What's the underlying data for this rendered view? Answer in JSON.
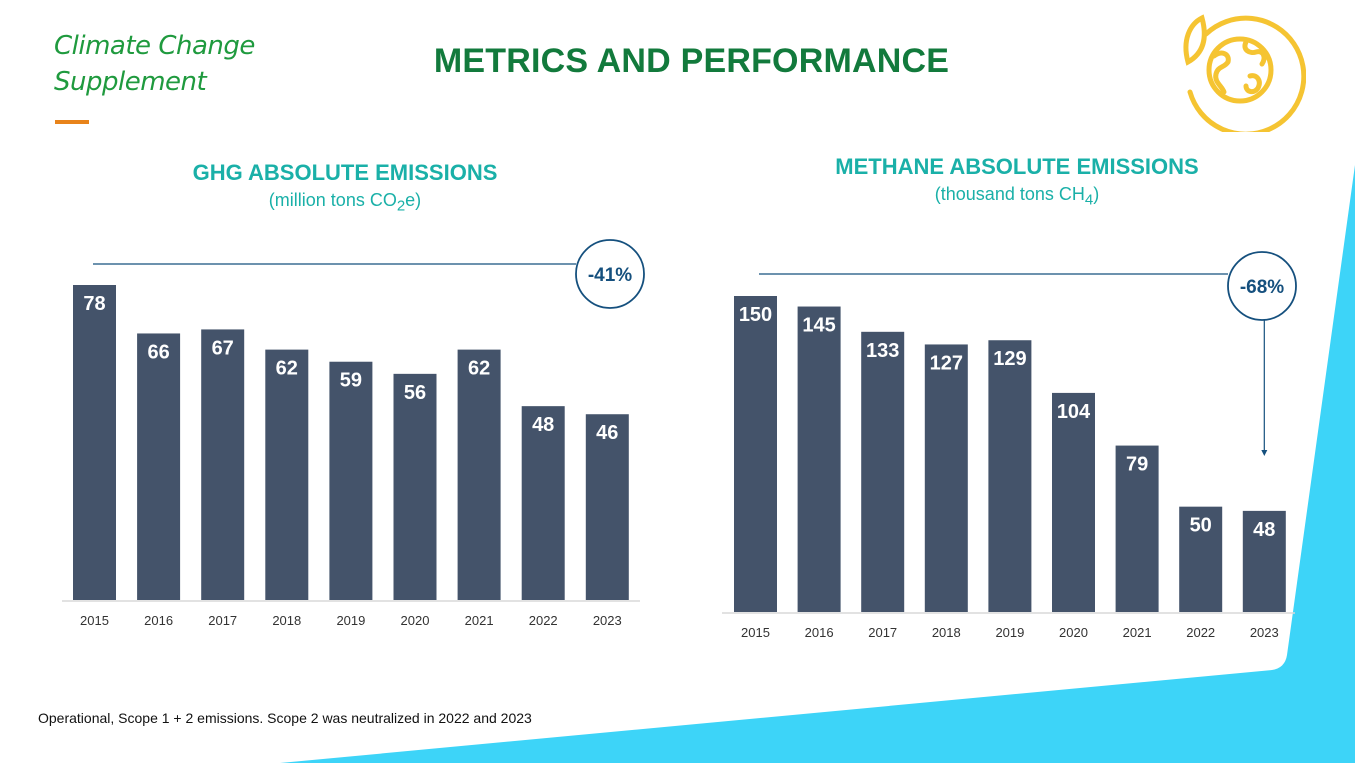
{
  "brand": {
    "line1": "Climate Change",
    "line2": "Supplement"
  },
  "page_title": "METRICS AND PERFORMANCE",
  "footnote": "Operational, Scope 1 + 2 emissions. Scope 2 was neutralized in 2022 and 2023",
  "colors": {
    "bar": "#44536a",
    "accent_green": "#127a3c",
    "teal": "#1ab0a8",
    "cyan_shape": "#3dd4f8",
    "badge_blue": "#15507e",
    "logo_yellow": "#f5c432"
  },
  "chart_data": [
    {
      "type": "bar",
      "title": "GHG ABSOLUTE EMISSIONS",
      "subtitle_pre": "(million tons CO",
      "subtitle_sub": "2",
      "subtitle_post": "e)",
      "categories": [
        "2015",
        "2016",
        "2017",
        "2018",
        "2019",
        "2020",
        "2021",
        "2022",
        "2023"
      ],
      "values": [
        78,
        66,
        67,
        62,
        59,
        56,
        62,
        48,
        46
      ],
      "ylim": [
        0,
        78
      ],
      "badge": "-41%"
    },
    {
      "type": "bar",
      "title": "METHANE ABSOLUTE EMISSIONS",
      "subtitle_pre": "(thousand tons CH",
      "subtitle_sub": "4",
      "subtitle_post": ")",
      "categories": [
        "2015",
        "2016",
        "2017",
        "2018",
        "2019",
        "2020",
        "2021",
        "2022",
        "2023"
      ],
      "values": [
        150,
        145,
        133,
        127,
        129,
        104,
        79,
        50,
        48
      ],
      "ylim": [
        0,
        150
      ],
      "badge": "-68%"
    }
  ]
}
